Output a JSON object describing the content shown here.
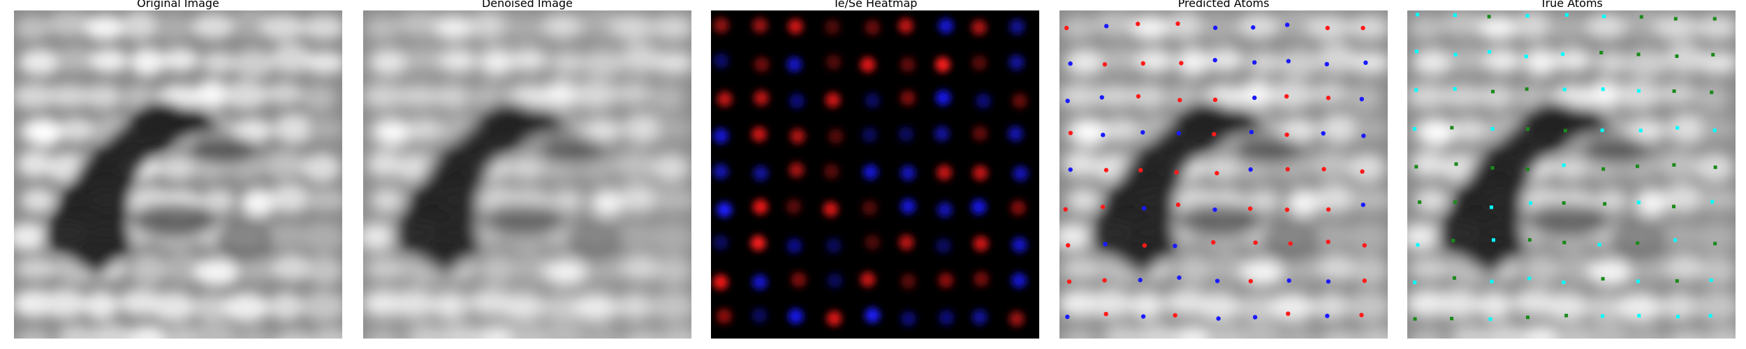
{
  "figure": {
    "panels": [
      {
        "title": "Original Image",
        "kind": "stm-image"
      },
      {
        "title": "Denoised Image",
        "kind": "stm-image-smooth"
      },
      {
        "title": "Te/Se Heatmap",
        "kind": "heatmap"
      },
      {
        "title": "Predicted Atoms",
        "kind": "overlay-predicted"
      },
      {
        "title": "True Atoms",
        "kind": "overlay-true"
      }
    ],
    "colors": {
      "te": "#ff1a1a",
      "se": "#1a1aff",
      "true_a": "#00ffff",
      "true_b": "#1a8a1a",
      "heat_bg": "#000000"
    }
  }
}
